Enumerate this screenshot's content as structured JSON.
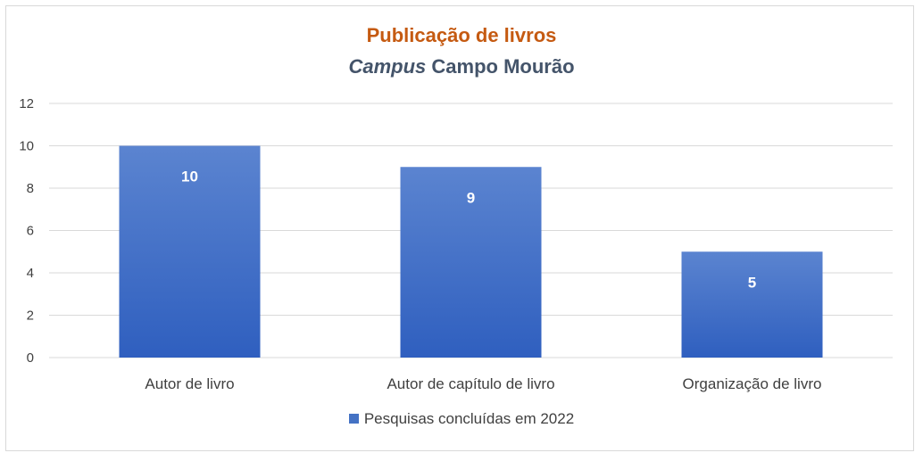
{
  "chart_data": {
    "type": "bar",
    "title": "Publicação de livros",
    "subtitle_italic": "Campus",
    "subtitle_rest": "Campo Mourão",
    "categories": [
      "Autor de livro",
      "Autor de capítulo de livro",
      "Organização de livro"
    ],
    "series": [
      {
        "name": "Pesquisas concluídas em 2022",
        "values": [
          10,
          9,
          5
        ]
      }
    ],
    "data_labels": [
      "10",
      "9",
      "5"
    ],
    "ylim": [
      0,
      12
    ],
    "yticks": [
      "0",
      "2",
      "4",
      "6",
      "8",
      "10",
      "12"
    ],
    "grid": true,
    "legend": "bottom",
    "colors": {
      "bar_top": "#5b84d0",
      "bar_bottom": "#2f5fbf",
      "title": "#c55a11",
      "subtitle": "#44546a",
      "grid": "#d9d9d9",
      "axis_text": "#404040",
      "data_label": "#ffffff"
    }
  }
}
